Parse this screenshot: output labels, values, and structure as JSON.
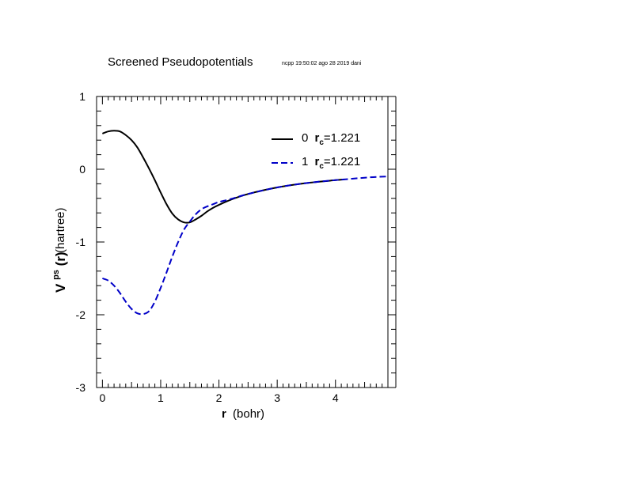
{
  "chart_data": {
    "type": "line",
    "title": "Screened Pseudopotentials",
    "subtitle": "ncpp 19:50:02 ago 28 2019 dani",
    "xlabel": {
      "bold": "r",
      "rest": "(bohr)"
    },
    "ylabel": {
      "main": "V",
      "sup": "ps",
      "arg": "(r)",
      "unit": "(hartree)"
    },
    "xlim": [
      -0.1,
      4.9
    ],
    "ylim": [
      -3,
      1
    ],
    "x_ticks": [
      0,
      1,
      2,
      3,
      4
    ],
    "y_ticks": [
      1,
      0,
      -1,
      -2,
      -3
    ],
    "x_tick_labels": [
      "0",
      "1",
      "2",
      "3",
      "4"
    ],
    "y_tick_labels": [
      "1",
      "0",
      "-1",
      "-2",
      "-3"
    ],
    "grid": false,
    "legend_position": "top-right",
    "series": [
      {
        "name": {
          "l": "0",
          "r": "r",
          "sub": "c",
          "val": "=1.221"
        },
        "color": "#000000",
        "style": "solid",
        "x": [
          0,
          0.1,
          0.2,
          0.3,
          0.4,
          0.5,
          0.6,
          0.7,
          0.8,
          0.9,
          1.0,
          1.1,
          1.2,
          1.3,
          1.4,
          1.5,
          1.6,
          1.7,
          1.8,
          1.9,
          2.0,
          2.2,
          2.5,
          3.0,
          3.5,
          4.0,
          4.15
        ],
        "y": [
          0.49,
          0.52,
          0.53,
          0.52,
          0.47,
          0.4,
          0.3,
          0.16,
          0.01,
          -0.15,
          -0.32,
          -0.48,
          -0.61,
          -0.69,
          -0.73,
          -0.73,
          -0.69,
          -0.64,
          -0.58,
          -0.53,
          -0.49,
          -0.42,
          -0.34,
          -0.25,
          -0.19,
          -0.15,
          -0.14
        ]
      },
      {
        "name": {
          "l": "1",
          "r": "r",
          "sub": "c",
          "val": "=1.221"
        },
        "color": "#0000c8",
        "style": "dashed",
        "x": [
          0,
          0.1,
          0.2,
          0.3,
          0.4,
          0.5,
          0.6,
          0.7,
          0.8,
          0.9,
          1.0,
          1.1,
          1.2,
          1.3,
          1.4,
          1.5,
          1.6,
          1.7,
          1.8,
          1.9,
          2.0,
          2.2,
          2.5,
          3.0,
          3.5,
          4.0,
          4.15,
          4.6,
          4.9
        ],
        "y": [
          -1.5,
          -1.53,
          -1.6,
          -1.7,
          -1.82,
          -1.92,
          -1.98,
          -1.99,
          -1.95,
          -1.82,
          -1.63,
          -1.42,
          -1.2,
          -1.0,
          -0.83,
          -0.72,
          -0.62,
          -0.55,
          -0.51,
          -0.48,
          -0.45,
          -0.41,
          -0.34,
          -0.25,
          -0.19,
          -0.15,
          -0.14,
          -0.11,
          -0.1
        ]
      }
    ]
  }
}
